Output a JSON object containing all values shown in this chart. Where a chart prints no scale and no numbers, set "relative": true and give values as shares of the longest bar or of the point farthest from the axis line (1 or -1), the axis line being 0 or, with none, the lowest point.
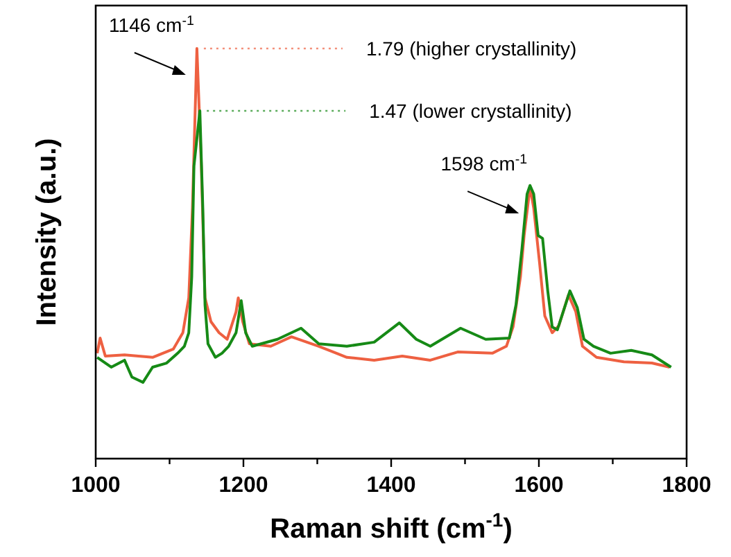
{
  "chart_data": {
    "type": "line",
    "relative": true,
    "xlabel": "Raman shift (cm$^{-1}$)",
    "ylabel": "Intensity (a.u.)",
    "xlim": [
      1000,
      1800
    ],
    "xticks": [
      1000,
      {
        "value": 1100,
        "label": null
      },
      1200,
      {
        "value": 1300,
        "label": null
      },
      1400,
      {
        "value": 1500,
        "label": null
      },
      1600,
      {
        "value": 1700,
        "label": null
      },
      1800
    ],
    "grid": false,
    "marker": "none",
    "line_style": "solid",
    "annotations": [
      {
        "text": "1146 cm$^{-1}$",
        "x": 1137,
        "y": 1.0
      },
      {
        "text": "1598 cm$^{-1}$",
        "x": 1588,
        "y": 0.662
      },
      {
        "text": "1.79 (higher crystallinity)",
        "x": 1137,
        "y": 1.0
      },
      {
        "text": "1.47 (lower crystallinity)",
        "x": 1141,
        "y": 0.848
      }
    ],
    "series": [
      {
        "color": "#ee6041",
        "x": [
          1002,
          1006,
          1013,
          1039,
          1077,
          1105,
          1118,
          1126,
          1131,
          1137,
          1143,
          1148,
          1156,
          1167,
          1178,
          1190,
          1193,
          1199,
          1208,
          1237,
          1265,
          1302,
          1340,
          1377,
          1415,
          1453,
          1490,
          1537,
          1556,
          1565,
          1575,
          1580,
          1588,
          1593,
          1601,
          1608,
          1618,
          1627,
          1640,
          1650,
          1659,
          1678,
          1715,
          1753,
          1777
        ],
        "values": [
          0.257,
          0.294,
          0.25,
          0.253,
          0.247,
          0.267,
          0.307,
          0.392,
          0.611,
          1.0,
          0.713,
          0.392,
          0.334,
          0.307,
          0.291,
          0.358,
          0.392,
          0.334,
          0.28,
          0.274,
          0.297,
          0.274,
          0.247,
          0.24,
          0.25,
          0.24,
          0.26,
          0.257,
          0.274,
          0.321,
          0.443,
          0.544,
          0.662,
          0.611,
          0.476,
          0.348,
          0.307,
          0.324,
          0.399,
          0.358,
          0.274,
          0.247,
          0.236,
          0.233,
          0.223
        ]
      },
      {
        "color": "#168a16",
        "x": [
          1002,
          1021,
          1039,
          1049,
          1064,
          1077,
          1096,
          1111,
          1120,
          1126,
          1130,
          1133,
          1141,
          1145,
          1148,
          1152,
          1162,
          1171,
          1180,
          1190,
          1197,
          1203,
          1212,
          1246,
          1278,
          1302,
          1340,
          1377,
          1411,
          1434,
          1453,
          1494,
          1528,
          1560,
          1569,
          1577,
          1584,
          1588,
          1593,
          1599,
          1605,
          1612,
          1618,
          1625,
          1642,
          1652,
          1661,
          1674,
          1697,
          1725,
          1753,
          1779
        ],
        "values": [
          0.247,
          0.223,
          0.24,
          0.199,
          0.186,
          0.223,
          0.233,
          0.257,
          0.274,
          0.307,
          0.443,
          0.713,
          0.848,
          0.611,
          0.375,
          0.28,
          0.247,
          0.257,
          0.274,
          0.307,
          0.385,
          0.307,
          0.274,
          0.291,
          0.318,
          0.28,
          0.274,
          0.284,
          0.331,
          0.291,
          0.274,
          0.318,
          0.291,
          0.294,
          0.375,
          0.51,
          0.645,
          0.666,
          0.645,
          0.544,
          0.537,
          0.409,
          0.321,
          0.314,
          0.409,
          0.368,
          0.291,
          0.274,
          0.257,
          0.264,
          0.253,
          0.223
        ]
      }
    ]
  }
}
